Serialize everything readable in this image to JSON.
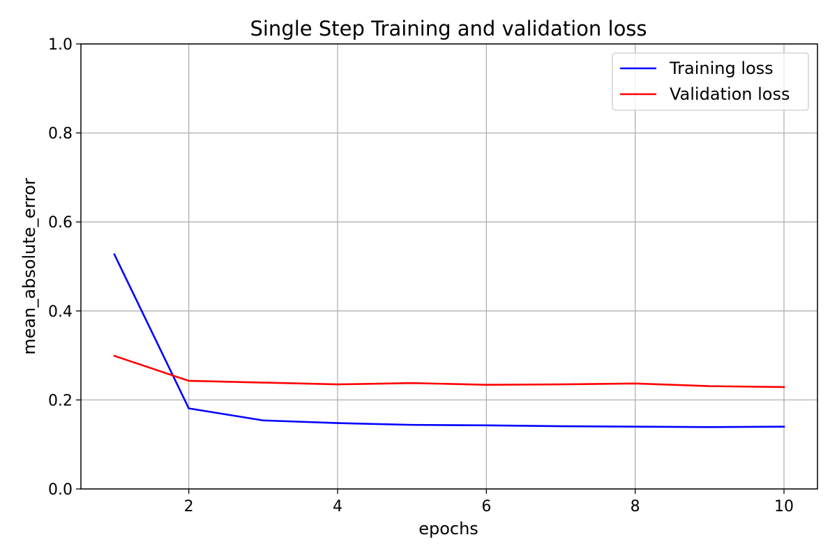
{
  "chart_data": {
    "type": "line",
    "title": "Single Step Training and validation loss",
    "xlabel": "epochs",
    "ylabel": "mean_absolute_error",
    "xlim": [
      0.55,
      10.45
    ],
    "ylim": [
      0.0,
      1.0
    ],
    "xticks": [
      2,
      4,
      6,
      8,
      10
    ],
    "yticks": [
      0.0,
      0.2,
      0.4,
      0.6,
      0.8,
      1.0
    ],
    "xtick_labels": [
      "2",
      "4",
      "6",
      "8",
      "10"
    ],
    "ytick_labels": [
      "0.0",
      "0.2",
      "0.4",
      "0.6",
      "0.8",
      "1.0"
    ],
    "grid": true,
    "legend_position": "top-right",
    "x": [
      1,
      2,
      3,
      4,
      5,
      6,
      7,
      8,
      9,
      10
    ],
    "series": [
      {
        "name": "Training loss",
        "color": "#0000ff",
        "values": [
          0.527,
          0.181,
          0.154,
          0.148,
          0.144,
          0.143,
          0.141,
          0.14,
          0.139,
          0.14
        ]
      },
      {
        "name": "Validation loss",
        "color": "#ff0000",
        "values": [
          0.299,
          0.243,
          0.239,
          0.235,
          0.238,
          0.234,
          0.235,
          0.237,
          0.231,
          0.229
        ]
      }
    ]
  }
}
